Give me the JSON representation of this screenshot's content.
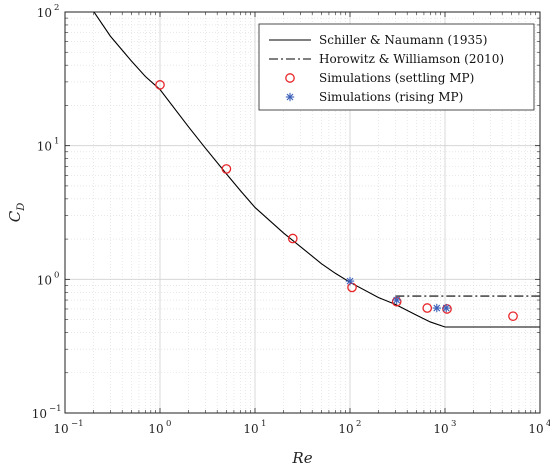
{
  "chart_data": {
    "type": "scatter",
    "xscale": "log",
    "yscale": "log",
    "xlim": [
      0.1,
      10000
    ],
    "ylim": [
      0.1,
      100
    ],
    "xlabel": "Re",
    "ylabel": {
      "main": "C",
      "sub": "D"
    },
    "x_ticks": [
      {
        "base": "10",
        "exp": "−1"
      },
      {
        "base": "10",
        "exp": "0"
      },
      {
        "base": "10",
        "exp": "1"
      },
      {
        "base": "10",
        "exp": "2"
      },
      {
        "base": "10",
        "exp": "3"
      },
      {
        "base": "10",
        "exp": "4"
      }
    ],
    "y_ticks": [
      {
        "base": "10",
        "exp": "−1"
      },
      {
        "base": "10",
        "exp": "0"
      },
      {
        "base": "10",
        "exp": "1"
      },
      {
        "base": "10",
        "exp": "2"
      }
    ],
    "grid": true,
    "legend_position": "top-right",
    "series": [
      {
        "name": "Schiller & Naumann (1935)",
        "kind": "line",
        "style": "solid",
        "color": "#000000",
        "x": [
          0.2,
          0.3,
          0.5,
          0.7,
          1,
          2,
          3,
          5,
          7,
          10,
          20,
          30,
          50,
          70,
          100,
          200,
          300,
          500,
          700,
          1000,
          1000,
          2000,
          5000,
          10000
        ],
        "y": [
          101,
          66,
          43,
          33,
          26.3,
          13.8,
          9.6,
          6.15,
          4.62,
          3.45,
          2.22,
          1.76,
          1.31,
          1.11,
          0.95,
          0.73,
          0.65,
          0.54,
          0.48,
          0.44,
          0.44,
          0.44,
          0.44,
          0.44
        ]
      },
      {
        "name": "Horowitz & Williamson (2010)",
        "kind": "line",
        "style": "dashdot",
        "color": "#000000",
        "x": [
          300,
          10000
        ],
        "y": [
          0.75,
          0.75
        ]
      },
      {
        "name": "Simulations (settling MP)",
        "kind": "marker",
        "marker": "circle",
        "color": "#e8262a",
        "x": [
          1,
          5,
          25,
          105,
          310,
          650,
          1050,
          5200
        ],
        "y": [
          28.5,
          6.7,
          2.02,
          0.87,
          0.68,
          0.61,
          0.6,
          0.53
        ]
      },
      {
        "name": "Simulations (rising MP)",
        "kind": "marker",
        "marker": "asterisk",
        "color": "#3a5fb8",
        "x": [
          100,
          310,
          820,
          1030
        ],
        "y": [
          0.97,
          0.7,
          0.61,
          0.61
        ]
      }
    ]
  }
}
